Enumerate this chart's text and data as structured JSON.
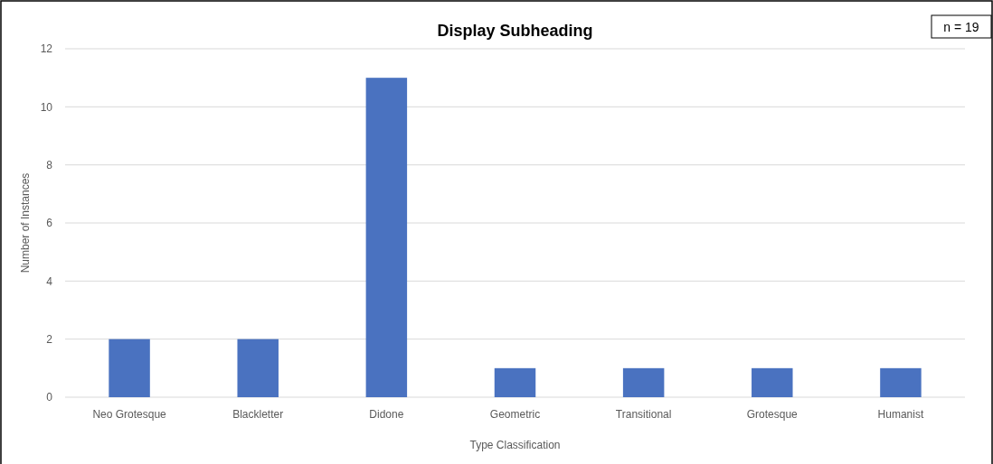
{
  "chart_data": {
    "type": "bar",
    "title": "Display Subheading",
    "xlabel": "Type Classification",
    "ylabel": "Number of Instances",
    "categories": [
      "Neo Grotesque",
      "Blackletter",
      "Didone",
      "Geometric",
      "Transitional",
      "Grotesque",
      "Humanist"
    ],
    "values": [
      2,
      2,
      11,
      1,
      1,
      1,
      1
    ],
    "color": "#4a72c0",
    "ylim": [
      0,
      12
    ],
    "yticks": [
      0,
      2,
      4,
      6,
      8,
      10,
      12
    ],
    "grid": "y",
    "annotations": [
      "n = 19"
    ]
  }
}
